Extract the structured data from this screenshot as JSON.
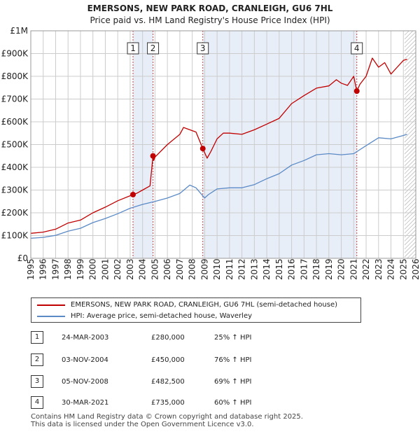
{
  "title": "EMERSONS, NEW PARK ROAD, CRANLEIGH, GU6 7HL",
  "subtitle": "Price paid vs. HM Land Registry's House Price Index (HPI)",
  "colors": {
    "property": "#c00000",
    "hpi": "#5b8ac6",
    "shade": "#e8eef8",
    "grid": "#cccccc"
  },
  "chart_data": {
    "type": "line",
    "xlim": [
      1995,
      2026
    ],
    "ylim": [
      0,
      1000000
    ],
    "x_ticks": [
      "1995",
      "1996",
      "1997",
      "1998",
      "1999",
      "2000",
      "2001",
      "2002",
      "2003",
      "2004",
      "2005",
      "2006",
      "2007",
      "2008",
      "2009",
      "2010",
      "2011",
      "2012",
      "2013",
      "2014",
      "2015",
      "2016",
      "2017",
      "2018",
      "2019",
      "2020",
      "2021",
      "2022",
      "2023",
      "2024",
      "2025",
      "2026"
    ],
    "y_ticks": [
      {
        "value": 0,
        "label": "£0"
      },
      {
        "value": 100000,
        "label": "£100K"
      },
      {
        "value": 200000,
        "label": "£200K"
      },
      {
        "value": 300000,
        "label": "£300K"
      },
      {
        "value": 400000,
        "label": "£400K"
      },
      {
        "value": 500000,
        "label": "£500K"
      },
      {
        "value": 600000,
        "label": "£600K"
      },
      {
        "value": 700000,
        "label": "£700K"
      },
      {
        "value": 800000,
        "label": "£800K"
      },
      {
        "value": 900000,
        "label": "£900K"
      },
      {
        "value": 1000000,
        "label": "£1M"
      }
    ],
    "grid": true,
    "series": [
      {
        "name": "EMERSONS, NEW PARK ROAD, CRANLEIGH, GU6 7HL (semi-detached house)",
        "x": [
          1995,
          1996,
          1997,
          1998,
          1999,
          2000,
          2001,
          2002,
          2003.23,
          2003.5,
          2004,
          2004.6,
          2004.84,
          2004.9,
          2005,
          2006,
          2007,
          2007.3,
          2007.8,
          2008.3,
          2008.85,
          2009.2,
          2009.5,
          2010,
          2010.5,
          2011,
          2012,
          2013,
          2014,
          2015,
          2016,
          2017,
          2018,
          2019,
          2019.6,
          2020,
          2020.5,
          2021,
          2021.25,
          2021.5,
          2022,
          2022.5,
          2023,
          2023.5,
          2024,
          2024.5,
          2025,
          2025.3
        ],
        "y": [
          110000,
          115000,
          128000,
          155000,
          168000,
          200000,
          225000,
          253000,
          280000,
          285000,
          300000,
          318000,
          450000,
          430000,
          445000,
          500000,
          545000,
          575000,
          565000,
          555000,
          482500,
          440000,
          470000,
          525000,
          550000,
          550000,
          545000,
          565000,
          590000,
          615000,
          680000,
          715000,
          748000,
          758000,
          785000,
          770000,
          760000,
          800000,
          735000,
          765000,
          800000,
          880000,
          840000,
          860000,
          810000,
          840000,
          870000,
          875000
        ]
      },
      {
        "name": "HPI: Average price, semi-detached house, Waverley",
        "x": [
          1995,
          1996,
          1997,
          1998,
          1999,
          2000,
          2001,
          2002,
          2003,
          2004,
          2005,
          2006,
          2007,
          2007.8,
          2008.3,
          2009,
          2009.3,
          2010,
          2011,
          2012,
          2013,
          2014,
          2015,
          2016,
          2017,
          2018,
          2019,
          2020,
          2021,
          2022,
          2023,
          2024,
          2025,
          2025.3
        ],
        "y": [
          88000,
          92000,
          101000,
          119000,
          132000,
          157000,
          175000,
          196000,
          220000,
          237000,
          250000,
          265000,
          285000,
          322000,
          310000,
          265000,
          280000,
          305000,
          310000,
          310000,
          324000,
          350000,
          372000,
          410000,
          430000,
          455000,
          460000,
          455000,
          460000,
          495000,
          530000,
          525000,
          540000,
          545000
        ]
      }
    ],
    "transactions": [
      {
        "id": "1",
        "x": 2003.23,
        "y": 280000,
        "date": "24-MAR-2003",
        "price": "£280,000",
        "hpi": "25% ↑ HPI"
      },
      {
        "id": "2",
        "x": 2004.84,
        "y": 450000,
        "date": "03-NOV-2004",
        "price": "£450,000",
        "hpi": "76% ↑ HPI"
      },
      {
        "id": "3",
        "x": 2008.85,
        "y": 482500,
        "date": "05-NOV-2008",
        "price": "£482,500",
        "hpi": "69% ↑ HPI"
      },
      {
        "id": "4",
        "x": 2021.25,
        "y": 735000,
        "date": "30-MAR-2021",
        "price": "£735,000",
        "hpi": "60% ↑ HPI"
      }
    ],
    "shaded_ranges": [
      [
        2003.23,
        2004.84
      ],
      [
        2008.85,
        2021.25
      ]
    ],
    "future_hatch_from": 2025.1
  },
  "legend": {
    "property_label": "EMERSONS, NEW PARK ROAD, CRANLEIGH, GU6 7HL (semi-detached house)",
    "hpi_label": "HPI: Average price, semi-detached house, Waverley"
  },
  "footer": {
    "line1": "Contains HM Land Registry data © Crown copyright and database right 2025.",
    "line2": "This data is licensed under the Open Government Licence v3.0."
  }
}
